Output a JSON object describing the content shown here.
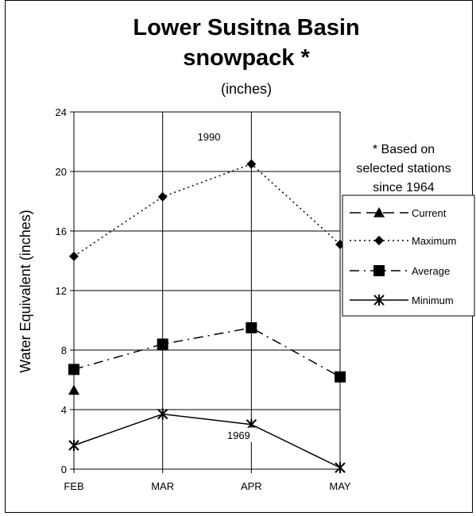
{
  "chart_data": {
    "type": "line",
    "title_line1": "Lower Susitna Basin",
    "title_line2": "snowpack *",
    "subtitle": "(inches)",
    "ylabel": "Water Equivalent (inches)",
    "xlabel": "",
    "categories": [
      "FEB",
      "MAR",
      "APR",
      "MAY"
    ],
    "ylim": [
      0,
      24
    ],
    "yticks": [
      0,
      4,
      8,
      12,
      16,
      20,
      24
    ],
    "grid": true,
    "note": [
      "* Based on",
      "selected stations",
      "since 1964"
    ],
    "annotations": [
      {
        "text": "1990",
        "series": "Maximum",
        "category": "MAR"
      },
      {
        "text": "1969",
        "series": "Minimum",
        "category": "APR"
      }
    ],
    "legend_position": "right",
    "series": [
      {
        "name": "Current",
        "values": [
          5.3,
          null,
          null,
          null
        ],
        "marker": "triangle",
        "dash": "long-dash",
        "color": "#000000"
      },
      {
        "name": "Maximum",
        "values": [
          14.3,
          18.3,
          20.5,
          15.1
        ],
        "marker": "diamond",
        "dash": "dotted",
        "color": "#000000"
      },
      {
        "name": "Average",
        "values": [
          6.7,
          8.4,
          9.5,
          6.2
        ],
        "marker": "square",
        "dash": "dash-dot",
        "color": "#000000"
      },
      {
        "name": "Minimum",
        "values": [
          1.6,
          3.7,
          3.0,
          0.1
        ],
        "marker": "star",
        "dash": "solid",
        "color": "#000000"
      }
    ]
  }
}
